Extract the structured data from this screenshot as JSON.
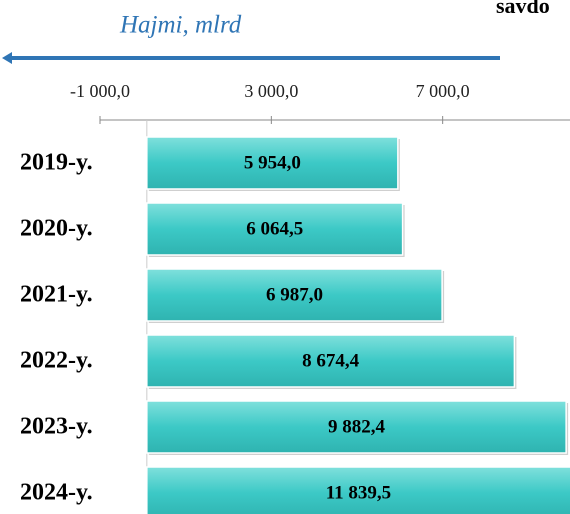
{
  "chart_data": {
    "type": "bar",
    "orientation": "horizontal",
    "title": "savdo",
    "axis_label": "Hajmi, mlrd",
    "categories": [
      "2019-y.",
      "2020-y.",
      "2021-y.",
      "2022-y.",
      "2023-y.",
      "2024-y."
    ],
    "values": [
      5954.0,
      6064.5,
      6987.0,
      8674.4,
      9882.4,
      11839.5
    ],
    "value_labels": [
      "5 954,0",
      "6 064,5",
      "6 987,0",
      "8 674,4",
      "9 882,4",
      "11 839,5"
    ],
    "color": "#3cc9c6",
    "axis_color": "#2f75b5",
    "xlim": [
      -1000,
      11000
    ],
    "xticks": [
      {
        "value": -1000,
        "label": "-1 000,0"
      },
      {
        "value": 3000,
        "label": "3 000,0"
      },
      {
        "value": 7000,
        "label": "7 000,0"
      }
    ]
  }
}
